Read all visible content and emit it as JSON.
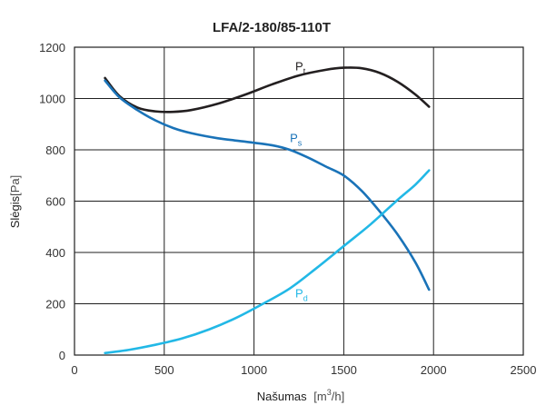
{
  "chart_data": {
    "type": "line",
    "title": "LFA/2-180/85-110T",
    "xlabel": {
      "text": "Našumas",
      "unit_open": "[m",
      "unit_sup": "3",
      "unit_close": "/h]"
    },
    "ylabel": {
      "text": "Slėgis",
      "unit": "[Pa]"
    },
    "xlim": [
      0,
      2500
    ],
    "ylim": [
      0,
      1200
    ],
    "xticks": [
      0,
      500,
      1000,
      1500,
      2000,
      2500
    ],
    "yticks": [
      0,
      200,
      400,
      600,
      800,
      1000,
      1200
    ],
    "grid": true,
    "series": [
      {
        "name": "P",
        "sub": "t",
        "color": "#231f20",
        "label_at": [
          1230,
          1110
        ],
        "points": [
          [
            170,
            1080
          ],
          [
            250,
            1010
          ],
          [
            350,
            965
          ],
          [
            450,
            950
          ],
          [
            550,
            948
          ],
          [
            650,
            955
          ],
          [
            800,
            980
          ],
          [
            950,
            1015
          ],
          [
            1100,
            1055
          ],
          [
            1250,
            1090
          ],
          [
            1400,
            1112
          ],
          [
            1500,
            1120
          ],
          [
            1600,
            1118
          ],
          [
            1700,
            1100
          ],
          [
            1800,
            1065
          ],
          [
            1900,
            1015
          ],
          [
            1975,
            968
          ]
        ]
      },
      {
        "name": "P",
        "sub": "s",
        "color": "#1a73b8",
        "label_at": [
          1200,
          830
        ],
        "points": [
          [
            170,
            1070
          ],
          [
            250,
            1005
          ],
          [
            350,
            955
          ],
          [
            450,
            915
          ],
          [
            550,
            885
          ],
          [
            650,
            865
          ],
          [
            800,
            845
          ],
          [
            950,
            832
          ],
          [
            1100,
            818
          ],
          [
            1200,
            800
          ],
          [
            1300,
            770
          ],
          [
            1400,
            735
          ],
          [
            1500,
            700
          ],
          [
            1600,
            640
          ],
          [
            1700,
            560
          ],
          [
            1800,
            470
          ],
          [
            1900,
            360
          ],
          [
            1975,
            255
          ]
        ]
      },
      {
        "name": "P",
        "sub": "d",
        "color": "#22b8e6",
        "label_at": [
          1230,
          225
        ],
        "points": [
          [
            170,
            8
          ],
          [
            300,
            20
          ],
          [
            450,
            40
          ],
          [
            600,
            65
          ],
          [
            750,
            100
          ],
          [
            900,
            145
          ],
          [
            1050,
            200
          ],
          [
            1200,
            260
          ],
          [
            1350,
            340
          ],
          [
            1500,
            425
          ],
          [
            1650,
            510
          ],
          [
            1800,
            605
          ],
          [
            1900,
            665
          ],
          [
            1975,
            720
          ]
        ]
      }
    ]
  }
}
